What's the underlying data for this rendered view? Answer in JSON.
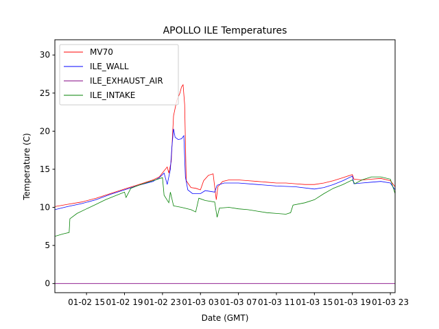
{
  "chart_data": {
    "type": "line",
    "title": "APOLLO ILE Temperatures",
    "xlabel": "Date (GMT)",
    "ylabel": "Temperature (C)",
    "xlim": [
      "01-02 11:40",
      "01-03 23:30"
    ],
    "ylim": [
      -1.2,
      32
    ],
    "yticks": [
      0,
      5,
      10,
      15,
      20,
      25,
      30
    ],
    "xticks": [
      {
        "t": "01-02 15:00",
        "label": "01-02 15"
      },
      {
        "t": "01-02 19:00",
        "label": "01-02 19"
      },
      {
        "t": "01-02 23:00",
        "label": "01-02 23"
      },
      {
        "t": "01-03 03:00",
        "label": "01-03 03"
      },
      {
        "t": "01-03 07:00",
        "label": "01-03 07"
      },
      {
        "t": "01-03 11:00",
        "label": "01-03 11"
      },
      {
        "t": "01-03 15:00",
        "label": "01-03 15"
      },
      {
        "t": "01-03 19:00",
        "label": "01-03 19"
      },
      {
        "t": "01-03 23:00",
        "label": "01-03 23"
      }
    ],
    "grid": false,
    "legend_position": "top-left",
    "series": [
      {
        "name": "MV70",
        "color": "#ff0000",
        "points": [
          [
            "01-02 11:40",
            10.1
          ],
          [
            "01-02 13:00",
            10.4
          ],
          [
            "01-02 14:30",
            10.7
          ],
          [
            "01-02 16:00",
            11.2
          ],
          [
            "01-02 17:30",
            11.8
          ],
          [
            "01-02 19:00",
            12.4
          ],
          [
            "01-02 20:30",
            13.0
          ],
          [
            "01-02 22:00",
            13.6
          ],
          [
            "01-02 22:40",
            14.0
          ],
          [
            "01-02 23:10",
            14.8
          ],
          [
            "01-02 23:30",
            15.3
          ],
          [
            "01-02 23:40",
            14.5
          ],
          [
            "01-02 23:55",
            16.0
          ],
          [
            "01-03 00:10",
            22.0
          ],
          [
            "01-03 00:30",
            24.0
          ],
          [
            "01-03 00:50",
            25.0
          ],
          [
            "01-03 01:00",
            25.8
          ],
          [
            "01-03 01:10",
            26.1
          ],
          [
            "01-03 01:20",
            23.5
          ],
          [
            "01-03 01:30",
            13.5
          ],
          [
            "01-03 02:00",
            12.6
          ],
          [
            "01-03 02:30",
            12.5
          ],
          [
            "01-03 03:00",
            12.3
          ],
          [
            "01-03 03:20",
            13.5
          ],
          [
            "01-03 03:50",
            14.2
          ],
          [
            "01-03 04:20",
            14.4
          ],
          [
            "01-03 04:40",
            11.0
          ],
          [
            "01-03 04:50",
            12.7
          ],
          [
            "01-03 05:20",
            13.4
          ],
          [
            "01-03 06:00",
            13.6
          ],
          [
            "01-03 07:00",
            13.6
          ],
          [
            "01-03 08:00",
            13.5
          ],
          [
            "01-03 09:00",
            13.4
          ],
          [
            "01-03 10:00",
            13.3
          ],
          [
            "01-03 11:00",
            13.2
          ],
          [
            "01-03 12:00",
            13.2
          ],
          [
            "01-03 13:00",
            13.1
          ],
          [
            "01-03 14:00",
            13.0
          ],
          [
            "01-03 15:00",
            13.0
          ],
          [
            "01-03 16:00",
            13.2
          ],
          [
            "01-03 17:00",
            13.5
          ],
          [
            "01-03 18:00",
            13.9
          ],
          [
            "01-03 19:00",
            14.3
          ],
          [
            "01-03 19:10",
            13.7
          ],
          [
            "01-03 20:00",
            13.6
          ],
          [
            "01-03 21:00",
            13.7
          ],
          [
            "01-03 22:00",
            13.8
          ],
          [
            "01-03 23:00",
            13.5
          ],
          [
            "01-03 23:30",
            12.7
          ]
        ]
      },
      {
        "name": "ILE_WALL",
        "color": "#0000ff",
        "points": [
          [
            "01-02 11:40",
            9.7
          ],
          [
            "01-02 13:00",
            10.1
          ],
          [
            "01-02 14:30",
            10.5
          ],
          [
            "01-02 16:00",
            11.0
          ],
          [
            "01-02 17:30",
            11.7
          ],
          [
            "01-02 19:00",
            12.3
          ],
          [
            "01-02 20:30",
            12.9
          ],
          [
            "01-02 22:00",
            13.4
          ],
          [
            "01-02 22:40",
            13.9
          ],
          [
            "01-02 23:10",
            14.5
          ],
          [
            "01-02 23:30",
            13.0
          ],
          [
            "01-02 23:50",
            15.0
          ],
          [
            "01-03 00:00",
            18.0
          ],
          [
            "01-03 00:10",
            20.3
          ],
          [
            "01-03 00:20",
            19.2
          ],
          [
            "01-03 00:40",
            18.9
          ],
          [
            "01-03 01:00",
            19.0
          ],
          [
            "01-03 01:15",
            19.4
          ],
          [
            "01-03 01:25",
            14.0
          ],
          [
            "01-03 01:40",
            12.3
          ],
          [
            "01-03 02:10",
            11.8
          ],
          [
            "01-03 03:00",
            11.8
          ],
          [
            "01-03 03:30",
            12.2
          ],
          [
            "01-03 04:00",
            12.1
          ],
          [
            "01-03 04:30",
            12.0
          ],
          [
            "01-03 04:45",
            12.9
          ],
          [
            "01-03 05:30",
            13.2
          ],
          [
            "01-03 07:00",
            13.2
          ],
          [
            "01-03 09:00",
            13.0
          ],
          [
            "01-03 11:00",
            12.8
          ],
          [
            "01-03 13:00",
            12.7
          ],
          [
            "01-03 15:00",
            12.4
          ],
          [
            "01-03 16:00",
            12.6
          ],
          [
            "01-03 17:00",
            13.0
          ],
          [
            "01-03 18:00",
            13.5
          ],
          [
            "01-03 19:00",
            14.1
          ],
          [
            "01-03 19:10",
            13.1
          ],
          [
            "01-03 20:00",
            13.2
          ],
          [
            "01-03 21:00",
            13.3
          ],
          [
            "01-03 22:00",
            13.4
          ],
          [
            "01-03 23:00",
            13.2
          ],
          [
            "01-03 23:30",
            12.3
          ]
        ]
      },
      {
        "name": "ILE_EXHAUST_AIR",
        "color": "#800080",
        "points": [
          [
            "01-02 11:40",
            0.0
          ],
          [
            "01-03 23:30",
            0.0
          ]
        ]
      },
      {
        "name": "ILE_INTAKE",
        "color": "#008000",
        "points": [
          [
            "01-02 11:40",
            6.2
          ],
          [
            "01-02 12:30",
            6.5
          ],
          [
            "01-02 13:10",
            6.7
          ],
          [
            "01-02 13:15",
            8.5
          ],
          [
            "01-02 14:00",
            9.2
          ],
          [
            "01-02 15:00",
            9.8
          ],
          [
            "01-02 16:00",
            10.4
          ],
          [
            "01-02 17:00",
            11.0
          ],
          [
            "01-02 18:00",
            11.5
          ],
          [
            "01-02 19:00",
            12.0
          ],
          [
            "01-02 19:10",
            11.3
          ],
          [
            "01-02 19:40",
            12.5
          ],
          [
            "01-02 20:30",
            12.9
          ],
          [
            "01-02 21:30",
            13.3
          ],
          [
            "01-02 22:30",
            13.7
          ],
          [
            "01-02 23:00",
            13.9
          ],
          [
            "01-02 23:10",
            11.6
          ],
          [
            "01-02 23:40",
            10.6
          ],
          [
            "01-02 23:50",
            12.0
          ],
          [
            "01-03 00:10",
            10.2
          ],
          [
            "01-03 01:00",
            10.0
          ],
          [
            "01-03 02:00",
            9.7
          ],
          [
            "01-03 02:30",
            9.4
          ],
          [
            "01-03 02:50",
            11.2
          ],
          [
            "01-03 03:30",
            10.9
          ],
          [
            "01-03 04:30",
            10.7
          ],
          [
            "01-03 04:45",
            8.7
          ],
          [
            "01-03 05:00",
            9.9
          ],
          [
            "01-03 06:00",
            10.0
          ],
          [
            "01-03 07:00",
            9.8
          ],
          [
            "01-03 08:00",
            9.7
          ],
          [
            "01-03 09:00",
            9.5
          ],
          [
            "01-03 10:00",
            9.3
          ],
          [
            "01-03 11:00",
            9.2
          ],
          [
            "01-03 12:00",
            9.1
          ],
          [
            "01-03 12:30",
            9.3
          ],
          [
            "01-03 12:45",
            10.3
          ],
          [
            "01-03 14:00",
            10.6
          ],
          [
            "01-03 15:00",
            11.0
          ],
          [
            "01-03 16:00",
            11.8
          ],
          [
            "01-03 17:00",
            12.5
          ],
          [
            "01-03 18:00",
            13.0
          ],
          [
            "01-03 19:00",
            13.6
          ],
          [
            "01-03 19:15",
            13.1
          ],
          [
            "01-03 20:00",
            13.6
          ],
          [
            "01-03 21:00",
            14.0
          ],
          [
            "01-03 22:00",
            14.0
          ],
          [
            "01-03 23:00",
            13.7
          ],
          [
            "01-03 23:30",
            11.8
          ]
        ]
      }
    ]
  }
}
